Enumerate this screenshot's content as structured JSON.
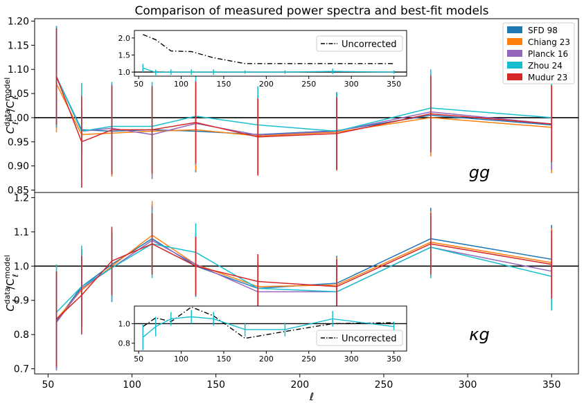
{
  "chart_data": {
    "title": "Comparison of measured power spectra and best-fit models",
    "type": "line",
    "xlabel": "ℓ",
    "xlim": [
      42,
      366
    ],
    "x_ticks": [
      50,
      100,
      150,
      200,
      250,
      300,
      350
    ],
    "x_tick_labels": [
      "50",
      "100",
      "150",
      "200",
      "250",
      "300",
      "350"
    ],
    "x": [
      55,
      70,
      88,
      112,
      138,
      175,
      222,
      278,
      350
    ],
    "series_meta": [
      {
        "name": "SFD 98",
        "color": "#1f77b4"
      },
      {
        "name": "Chiang 23",
        "color": "#ff7f0e"
      },
      {
        "name": "Planck 16",
        "color": "#9467bd"
      },
      {
        "name": "Zhou 24",
        "color": "#17becf"
      },
      {
        "name": "Mudur 23",
        "color": "#d62728"
      }
    ],
    "panels": [
      {
        "id": "gg",
        "label": "gg",
        "ylabel_main": "C",
        "ylabel_sup": "data",
        "ylabel_sub": "ℓ",
        "ylabel_div": "/C",
        "ylabel_sup2": "model",
        "ylabel_sub2": "ℓ",
        "ylim": [
          0.845,
          1.205
        ],
        "y_ticks": [
          0.85,
          0.9,
          0.95,
          1.0,
          1.05,
          1.1,
          1.15,
          1.2
        ],
        "y_tick_labels": [
          "0.85",
          "0.90",
          "0.95",
          "1.00",
          "1.05",
          "1.10",
          "1.15",
          "1.20"
        ],
        "reference_line": 1.0,
        "series": [
          {
            "name": "SFD 98",
            "values": [
              1.085,
              0.975,
              0.972,
              0.975,
              0.972,
              0.965,
              0.973,
              1.005,
              0.985
            ],
            "err": [
              0.105,
              0.045,
              0.092,
              0.092,
              0.085,
              0.08,
              0.08,
              0.08,
              0.095
            ]
          },
          {
            "name": "Chiang 23",
            "values": [
              1.07,
              0.965,
              0.968,
              0.972,
              0.975,
              0.962,
              0.97,
              1.0,
              0.98
            ],
            "err": [
              0.1,
              0.045,
              0.09,
              0.09,
              0.085,
              0.08,
              0.08,
              0.08,
              0.095
            ]
          },
          {
            "name": "Planck 16",
            "values": [
              1.085,
              0.972,
              0.978,
              0.965,
              0.988,
              0.964,
              0.972,
              1.012,
              0.987
            ],
            "err": [
              0.105,
              0.045,
              0.092,
              0.092,
              0.085,
              0.08,
              0.08,
              0.08,
              0.095
            ]
          },
          {
            "name": "Zhou 24",
            "values": [
              1.085,
              0.972,
              0.982,
              0.982,
              1.003,
              0.985,
              0.972,
              1.02,
              1.0
            ],
            "err": [
              0.105,
              0.1,
              0.092,
              0.092,
              0.1,
              0.08,
              0.08,
              0.08,
              0.095
            ]
          },
          {
            "name": "Mudur 23",
            "values": [
              1.085,
              0.95,
              0.975,
              0.975,
              0.99,
              0.96,
              0.967,
              1.008,
              0.987
            ],
            "err": [
              0.1,
              0.095,
              0.092,
              0.09,
              0.085,
              0.08,
              0.075,
              0.08,
              0.08
            ]
          }
        ],
        "inset": {
          "xlim": [
            45,
            365
          ],
          "ylim": [
            0.88,
            2.22
          ],
          "x_ticks": [
            50,
            100,
            150,
            200,
            250,
            300,
            350
          ],
          "x_tick_labels": [
            "50",
            "100",
            "150",
            "200",
            "250",
            "300",
            "350"
          ],
          "y_ticks": [
            1.0,
            1.5,
            2.0
          ],
          "y_tick_labels": [
            "1.0",
            "1.5",
            "2.0"
          ],
          "legend_label": "Uncorrected",
          "uncorrected": {
            "x": [
              55,
              70,
              88,
              112,
              138,
              175,
              222,
              278,
              350
            ],
            "y": [
              2.1,
              1.95,
              1.62,
              1.6,
              1.42,
              1.25,
              1.25,
              1.25,
              1.25
            ]
          },
          "zhou": {
            "x": [
              55,
              70,
              88,
              112,
              138,
              175,
              222,
              278,
              350
            ],
            "y": [
              1.12,
              0.99,
              1.0,
              1.0,
              1.0,
              1.0,
              1.0,
              1.02,
              1.0
            ],
            "err": [
              0.12,
              0.08,
              0.08,
              0.08,
              0.08,
              0.05,
              0.05,
              0.08,
              0.05
            ]
          }
        }
      },
      {
        "id": "kg",
        "label": "κg",
        "ylabel_main": "C",
        "ylabel_sup": "data",
        "ylabel_sub": "ℓ",
        "ylabel_div": "/C",
        "ylabel_sup2": "model",
        "ylabel_sub2": "ℓ",
        "ylim": [
          0.685,
          1.215
        ],
        "y_ticks": [
          0.7,
          0.8,
          0.9,
          1.0,
          1.1,
          1.2
        ],
        "y_tick_labels": [
          "0.7",
          "0.8",
          "0.9",
          "1.0",
          "1.1",
          "1.2"
        ],
        "reference_line": 1.0,
        "series": [
          {
            "name": "SFD 98",
            "values": [
              0.84,
              0.94,
              1.005,
              1.08,
              1.0,
              0.935,
              0.95,
              1.08,
              1.02
            ],
            "err": [
              0.14,
              0.11,
              0.1,
              0.1,
              0.09,
              0.08,
              0.08,
              0.09,
              0.1
            ]
          },
          {
            "name": "Chiang 23",
            "values": [
              0.845,
              0.93,
              1.0,
              1.09,
              1.005,
              0.94,
              0.945,
              1.07,
              1.01
            ],
            "err": [
              0.14,
              0.11,
              0.1,
              0.1,
              0.09,
              0.08,
              0.08,
              0.09,
              0.1
            ]
          },
          {
            "name": "Planck 16",
            "values": [
              0.835,
              0.935,
              0.995,
              1.075,
              1.005,
              0.925,
              0.925,
              1.055,
              0.985
            ],
            "err": [
              0.14,
              0.11,
              0.1,
              0.1,
              0.09,
              0.08,
              0.08,
              0.09,
              0.1
            ]
          },
          {
            "name": "Zhou 24",
            "values": [
              0.865,
              0.94,
              0.995,
              1.065,
              1.04,
              0.935,
              0.925,
              1.055,
              0.97
            ],
            "err": [
              0.14,
              0.12,
              0.1,
              0.1,
              0.085,
              0.08,
              0.095,
              0.09,
              0.1
            ]
          },
          {
            "name": "Mudur 23",
            "values": [
              0.845,
              0.915,
              1.015,
              1.065,
              1.0,
              0.955,
              0.94,
              1.065,
              1.005
            ],
            "err": [
              0.14,
              0.115,
              0.1,
              0.09,
              0.085,
              0.08,
              0.08,
              0.09,
              0.1
            ]
          }
        ],
        "inset": {
          "xlim": [
            45,
            365
          ],
          "ylim": [
            0.72,
            1.18
          ],
          "x_ticks": [
            50,
            100,
            150,
            200,
            250,
            300,
            350
          ],
          "x_tick_labels": [
            "50",
            "100",
            "150",
            "200",
            "250",
            "300",
            "350"
          ],
          "y_ticks": [
            0.8,
            1.0
          ],
          "y_tick_labels": [
            "0.8",
            "1.0"
          ],
          "legend_label": "Uncorrected",
          "uncorrected": {
            "x": [
              55,
              70,
              88,
              112,
              138,
              175,
              222,
              278,
              350
            ],
            "y": [
              0.97,
              1.06,
              1.02,
              1.17,
              1.08,
              0.85,
              0.92,
              1.0,
              1.01
            ]
          },
          "zhou": {
            "x": [
              55,
              70,
              88,
              112,
              138,
              175,
              222,
              278,
              350
            ],
            "y": [
              0.86,
              0.97,
              1.05,
              1.07,
              1.05,
              0.94,
              0.94,
              1.05,
              0.97
            ],
            "err": [
              0.13,
              0.1,
              0.07,
              0.07,
              0.07,
              0.07,
              0.07,
              0.08,
              0.05
            ]
          }
        }
      }
    ],
    "legend": {
      "placement": "top-right",
      "entries": [
        "SFD 98",
        "Chiang 23",
        "Planck 16",
        "Zhou 24",
        "Mudur 23"
      ]
    }
  }
}
